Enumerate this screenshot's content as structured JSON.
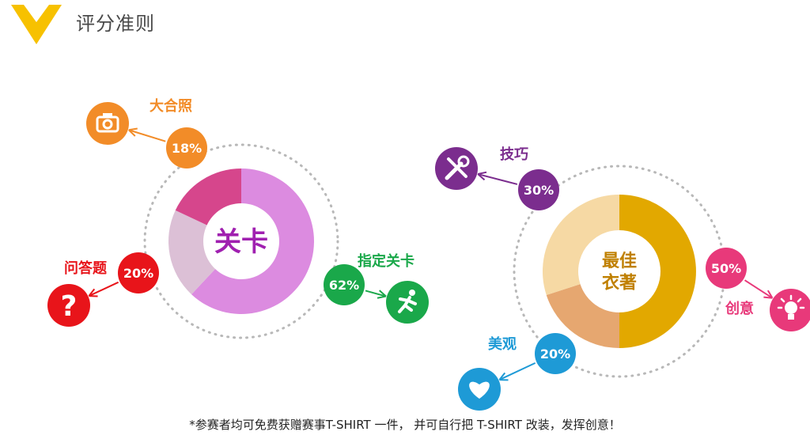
{
  "header": {
    "title": "评分准则",
    "accent_color": "#f7c100"
  },
  "footer": {
    "note": "*参赛者均可免费获赠赛事T-SHIRT 一件， 并可自行把 T-SHIRT 改装，发挥创意！"
  },
  "chart_data": [
    {
      "type": "pie",
      "center_label": [
        "关卡"
      ],
      "center_color": "#a020b0",
      "slices": [
        {
          "label": "指定关卡",
          "value": 62,
          "percent_label": "62%",
          "slice_color": "#dc8be0",
          "badge_color": "#1aa84a",
          "label_color": "#1aa84a",
          "icon": "running-man-icon"
        },
        {
          "label": "问答题",
          "value": 20,
          "percent_label": "20%",
          "slice_color": "#dcc0d6",
          "badge_color": "#e8141a",
          "label_color": "#e8141a",
          "icon": "question-mark-icon"
        },
        {
          "label": "大合照",
          "value": 18,
          "percent_label": "18%",
          "slice_color": "#d6468c",
          "badge_color": "#f28c28",
          "label_color": "#f28c28",
          "icon": "camera-icon"
        }
      ]
    },
    {
      "type": "pie",
      "center_label": [
        "最佳",
        "衣著"
      ],
      "center_color": "#c08000",
      "slices": [
        {
          "label": "创意",
          "value": 50,
          "percent_label": "50%",
          "slice_color": "#e2a800",
          "badge_color": "#e8397a",
          "label_color": "#e8397a",
          "icon": "lightbulb-icon"
        },
        {
          "label": "美观",
          "value": 20,
          "percent_label": "20%",
          "slice_color": "#e6a770",
          "badge_color": "#1e9ad6",
          "label_color": "#1e9ad6",
          "icon": "heart-icon"
        },
        {
          "label": "技巧",
          "value": 30,
          "percent_label": "30%",
          "slice_color": "#f6d9a4",
          "badge_color": "#7b2d8e",
          "label_color": "#7b2d8e",
          "icon": "tools-icon"
        }
      ]
    }
  ]
}
